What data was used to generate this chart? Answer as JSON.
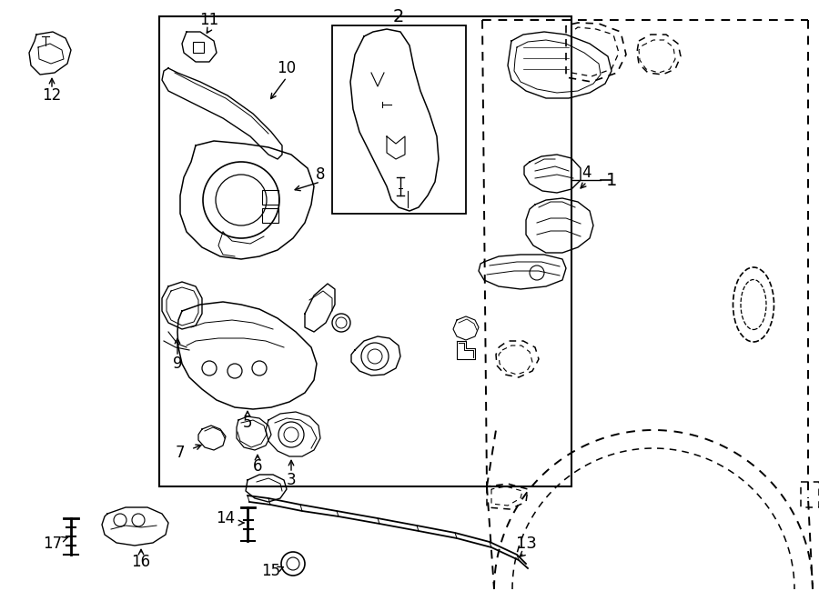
{
  "bg_color": "#ffffff",
  "line_color": "#000000",
  "fig_width": 9.0,
  "fig_height": 6.61,
  "dpi": 100,
  "xlim": [
    0,
    900
  ],
  "ylim": [
    0,
    661
  ]
}
